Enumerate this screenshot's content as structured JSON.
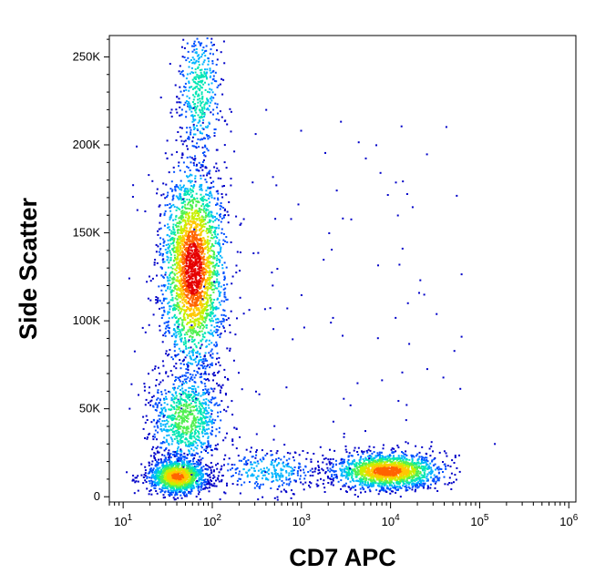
{
  "chart_data": {
    "type": "scatter",
    "subtype": "flow-cytometry-density-dot-plot",
    "xlabel": "CD7 APC",
    "ylabel": "Side Scatter",
    "x_scale": "log",
    "xlim": [
      7,
      1200000
    ],
    "ylim": [
      -3000,
      262143
    ],
    "x_ticks": [
      {
        "value": 10,
        "base": "10",
        "exp": "1"
      },
      {
        "value": 100,
        "base": "10",
        "exp": "2"
      },
      {
        "value": 1000,
        "base": "10",
        "exp": "3"
      },
      {
        "value": 10000,
        "base": "10",
        "exp": "4"
      },
      {
        "value": 100000,
        "base": "10",
        "exp": "5"
      },
      {
        "value": 1000000,
        "base": "10",
        "exp": "6"
      }
    ],
    "y_ticks": [
      {
        "value": 0,
        "label": "0"
      },
      {
        "value": 50000,
        "label": "50K"
      },
      {
        "value": 100000,
        "label": "100K"
      },
      {
        "value": 150000,
        "label": "150K"
      },
      {
        "value": 200000,
        "label": "200K"
      },
      {
        "value": 250000,
        "label": "250K"
      }
    ],
    "populations": [
      {
        "cx": 60,
        "cy": 130000,
        "sx_log": 0.17,
        "sy": 28000,
        "n": 2600,
        "weight": 1.0
      },
      {
        "cx": 50,
        "cy": 45000,
        "sx_log": 0.2,
        "sy": 14000,
        "n": 900,
        "weight": 0.45
      },
      {
        "cx": 40,
        "cy": 12000,
        "sx_log": 0.16,
        "sy": 5000,
        "n": 1300,
        "weight": 0.8
      },
      {
        "cx": 9000,
        "cy": 15000,
        "sx_log": 0.3,
        "sy": 5000,
        "n": 1700,
        "weight": 0.85
      },
      {
        "cx": 70,
        "cy": 230000,
        "sx_log": 0.12,
        "sy": 20000,
        "n": 450,
        "weight": 0.35
      },
      {
        "cx": 400,
        "cy": 15000,
        "sx_log": 0.3,
        "sy": 6000,
        "n": 300,
        "weight": 0.25
      }
    ],
    "density_colors": [
      "#0000c8",
      "#0050ff",
      "#00b4ff",
      "#00e6b4",
      "#50f050",
      "#c8f000",
      "#ffc800",
      "#ff6400",
      "#e60000"
    ],
    "grid": false,
    "legend": "none"
  }
}
